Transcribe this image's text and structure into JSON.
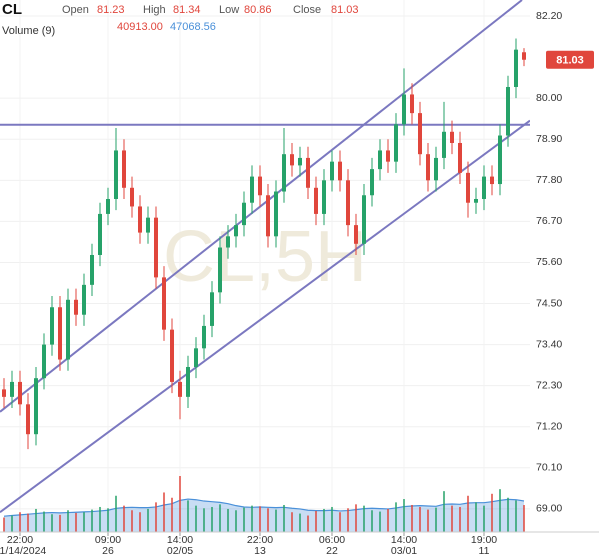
{
  "chart_data": {
    "type": "candlestick",
    "symbol": "CL",
    "watermark": "CL,5H",
    "header": {
      "labels": [
        "Open",
        "High",
        "Low",
        "Close"
      ],
      "values": [
        81.23,
        81.34,
        80.86,
        81.03
      ]
    },
    "volume_label": "Volume (9)",
    "volume_readout": [
      {
        "value": 40913,
        "label": "40913.00"
      },
      {
        "value": 47068.56,
        "label": "47068.56"
      }
    ],
    "up_color": "#26a269",
    "down_color": "#e0463c",
    "ma_color": "#4a90d9",
    "line_color": "#7b78c0",
    "ylim": [
      68.38,
      82.63
    ],
    "yticks": [
      {
        "value": 82.2,
        "label": "82.20"
      },
      {
        "value": 80,
        "label": "80.00"
      },
      {
        "value": 78.9,
        "label": "78.90"
      },
      {
        "value": 77.8,
        "label": "77.80"
      },
      {
        "value": 76.7,
        "label": "76.70"
      },
      {
        "value": 75.6,
        "label": "75.60"
      },
      {
        "value": 74.5,
        "label": "74.50"
      },
      {
        "value": 73.4,
        "label": "73.40"
      },
      {
        "value": 72.3,
        "label": "72.30"
      },
      {
        "value": 71.2,
        "label": "71.20"
      },
      {
        "value": 70.1,
        "label": "70.10"
      },
      {
        "value": 69,
        "label": "69.00"
      }
    ],
    "xticks": [
      {
        "index": 2,
        "time": "22:00",
        "date": "01/14/2024"
      },
      {
        "index": 13,
        "time": "09:00",
        "date": "26"
      },
      {
        "index": 22,
        "time": "14:00",
        "date": "02/05"
      },
      {
        "index": 32,
        "time": "22:00",
        "date": "13"
      },
      {
        "index": 41,
        "time": "06:00",
        "date": "22"
      },
      {
        "index": 50,
        "time": "14:00",
        "date": "03/01"
      },
      {
        "index": 60,
        "time": "19:00",
        "date": "11"
      }
    ],
    "open": [
      72.2,
      72.0,
      72.4,
      71.8,
      71.0,
      72.5,
      73.4,
      74.4,
      73.0,
      74.6,
      74.2,
      75.0,
      75.8,
      76.9,
      77.3,
      78.6,
      77.6,
      77.1,
      76.4,
      76.8,
      75.2,
      73.8,
      72.4,
      72.0,
      72.8,
      73.3,
      73.9,
      74.8,
      76.0,
      76.3,
      76.6,
      77.2,
      77.9,
      77.4,
      76.3,
      77.5,
      78.5,
      78.2,
      78.4,
      77.6,
      76.9,
      77.8,
      78.3,
      77.8,
      76.6,
      76.1,
      77.4,
      78.1,
      78.6,
      78.3,
      79.3,
      80.1,
      79.6,
      78.5,
      77.8,
      78.4,
      79.1,
      78.8,
      78.0,
      77.2,
      77.3,
      77.9,
      77.7,
      79.0,
      80.3,
      81.23
    ],
    "high": [
      72.5,
      72.7,
      72.7,
      72.1,
      72.8,
      73.7,
      74.7,
      74.7,
      74.9,
      74.9,
      75.3,
      76.1,
      77.2,
      77.6,
      79.2,
      78.9,
      77.9,
      77.4,
      77.1,
      77.1,
      75.5,
      74.1,
      72.7,
      73.1,
      73.6,
      74.2,
      75.1,
      76.3,
      76.6,
      76.9,
      77.5,
      78.2,
      78.2,
      77.7,
      77.8,
      79.2,
      78.8,
      78.7,
      78.7,
      77.9,
      78.1,
      78.6,
      78.6,
      78.1,
      76.9,
      77.7,
      78.4,
      78.9,
      78.9,
      79.6,
      80.8,
      80.4,
      79.9,
      78.8,
      78.7,
      79.9,
      79.4,
      79.1,
      78.3,
      77.6,
      78.2,
      78.2,
      79.3,
      80.6,
      81.6,
      81.34
    ],
    "low": [
      71.7,
      71.7,
      71.5,
      70.6,
      70.7,
      72.2,
      73.1,
      72.7,
      72.7,
      73.9,
      73.9,
      74.7,
      75.5,
      76.6,
      77.0,
      77.3,
      76.8,
      76.1,
      76.1,
      74.9,
      73.5,
      72.1,
      71.4,
      71.7,
      72.5,
      73.0,
      73.6,
      74.5,
      75.7,
      76.0,
      76.3,
      76.9,
      77.1,
      76.0,
      76.0,
      77.2,
      77.9,
      77.9,
      77.3,
      76.6,
      76.6,
      77.5,
      77.5,
      76.3,
      75.8,
      75.8,
      77.1,
      77.8,
      78.0,
      78.0,
      79.0,
      79.3,
      78.2,
      77.5,
      77.5,
      78.1,
      78.5,
      77.7,
      76.8,
      76.9,
      77.0,
      77.4,
      77.4,
      78.7,
      80.0,
      80.86
    ],
    "close": [
      72.0,
      72.4,
      71.8,
      71.0,
      72.5,
      73.4,
      74.4,
      73.0,
      74.6,
      74.2,
      75.0,
      75.8,
      76.9,
      77.3,
      78.6,
      77.6,
      77.1,
      76.4,
      76.8,
      75.2,
      73.8,
      72.4,
      72.0,
      72.8,
      73.3,
      73.9,
      74.8,
      76.0,
      76.3,
      76.6,
      77.2,
      77.9,
      77.4,
      76.3,
      77.5,
      78.5,
      78.2,
      78.4,
      77.6,
      76.9,
      77.8,
      78.3,
      77.8,
      76.6,
      76.1,
      77.4,
      78.1,
      78.6,
      78.3,
      79.3,
      80.1,
      79.6,
      78.5,
      77.8,
      78.4,
      79.1,
      78.8,
      78.0,
      77.2,
      77.3,
      77.9,
      77.7,
      79.0,
      80.3,
      81.3,
      81.03
    ],
    "volume": [
      22000,
      25000,
      30000,
      28000,
      35000,
      31000,
      27000,
      26000,
      33000,
      29000,
      30000,
      34000,
      38000,
      36000,
      55000,
      40000,
      33000,
      30000,
      35000,
      45000,
      60000,
      52000,
      85000,
      48000,
      40000,
      36000,
      38000,
      42000,
      35000,
      33000,
      37000,
      40000,
      39000,
      36000,
      34000,
      41000,
      30000,
      28000,
      25000,
      32000,
      35000,
      38000,
      30000,
      36000,
      42000,
      40000,
      33000,
      31000,
      35000,
      45000,
      50000,
      41000,
      38000,
      34000,
      37000,
      62000,
      40000,
      38000,
      55000,
      45000,
      40000,
      58000,
      65000,
      52000,
      48000,
      40913
    ],
    "volume_ma": [
      24000,
      25000,
      26000,
      27000,
      28000,
      29000,
      29500,
      29000,
      29500,
      30000,
      30500,
      31000,
      32000,
      33000,
      36000,
      37000,
      37500,
      37000,
      37000,
      38000,
      41000,
      43000,
      48000,
      50000,
      49000,
      47000,
      46000,
      45000,
      43000,
      40000,
      38000,
      37500,
      38000,
      37500,
      37000,
      37500,
      36000,
      35000,
      33000,
      32500,
      32500,
      33000,
      32000,
      32500,
      34000,
      35500,
      36000,
      35500,
      35000,
      36500,
      38500,
      39500,
      40000,
      39500,
      39000,
      42000,
      42500,
      42000,
      44000,
      44500,
      44500,
      46000,
      48000,
      49500,
      49000,
      47068.56
    ],
    "trendlines": [
      {
        "x1": -0.5,
        "y1": 71.6,
        "x2": 64.75,
        "y2": 82.63
      },
      {
        "x1": -0.5,
        "y1": 68.91,
        "x2": 65.75,
        "y2": 79.4
      },
      {
        "x1": -0.5,
        "y1": 79.29,
        "x2": 65.75,
        "y2": 79.29
      }
    ]
  }
}
